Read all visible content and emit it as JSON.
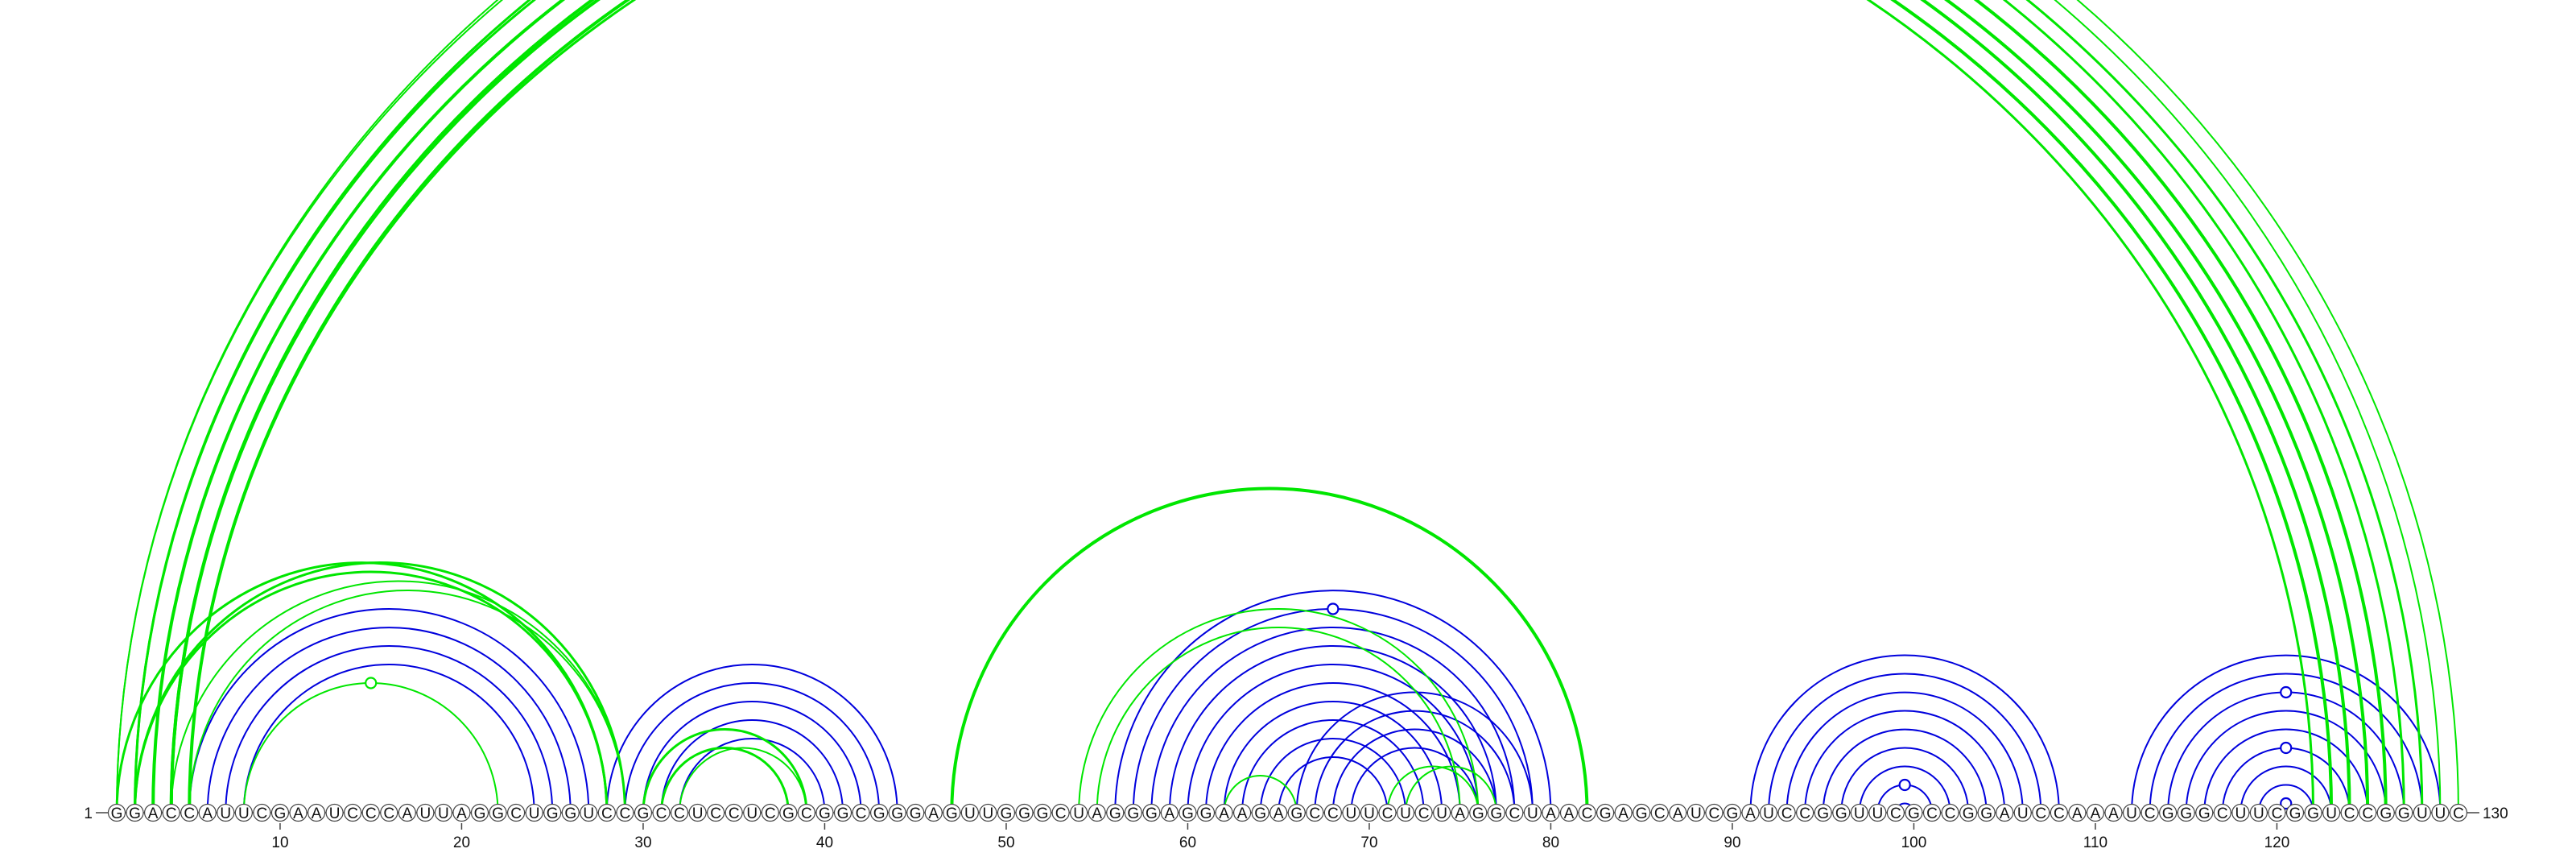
{
  "sequence": "GGACCAUUCGAAUCCCAUUAGGCUGGUCCGCCUCCUCGCGGCGGGAGUUGGGCUAGGGAGGAAGAGCCUUCUCUAGGCUAACGAGCAUCGAUCCGGUUCGCCGGAUCCAAAUCGGGCUUCGGUCCGGUUC",
  "start_label": "1",
  "end_label": "130",
  "ticks": [
    10,
    20,
    30,
    40,
    50,
    60,
    70,
    80,
    90,
    100,
    110,
    120
  ],
  "colors": {
    "reference": "#0000dd",
    "predicted": "#00e600"
  },
  "arcs": {
    "green": [
      [
        1,
        130,
        2
      ],
      [
        1,
        129,
        2
      ],
      [
        2,
        128,
        3
      ],
      [
        2,
        127,
        3
      ],
      [
        3,
        126,
        4
      ],
      [
        4,
        125,
        4
      ],
      [
        4,
        124,
        4
      ],
      [
        5,
        123,
        4
      ],
      [
        5,
        122,
        3
      ],
      [
        1,
        28,
        3
      ],
      [
        2,
        28,
        3
      ],
      [
        2,
        29,
        3
      ],
      [
        4,
        29,
        2
      ],
      [
        5,
        29,
        2
      ],
      [
        8,
        22,
        2
      ],
      [
        30,
        39,
        3
      ],
      [
        31,
        38,
        3
      ],
      [
        32,
        39,
        2
      ],
      [
        47,
        82,
        4
      ],
      [
        54,
        76,
        2
      ],
      [
        55,
        75,
        2
      ],
      [
        62,
        66,
        2
      ],
      [
        71,
        76,
        2
      ],
      [
        72,
        77,
        2
      ]
    ],
    "blue": [
      [
        5,
        27,
        2
      ],
      [
        6,
        26,
        2
      ],
      [
        7,
        25,
        2
      ],
      [
        8,
        24,
        2
      ],
      [
        28,
        44,
        2
      ],
      [
        29,
        43,
        2
      ],
      [
        30,
        42,
        2
      ],
      [
        31,
        41,
        2
      ],
      [
        32,
        40,
        2
      ],
      [
        56,
        80,
        2
      ],
      [
        57,
        79,
        2
      ],
      [
        58,
        78,
        2
      ],
      [
        59,
        77,
        2
      ],
      [
        60,
        76,
        2
      ],
      [
        61,
        75,
        2
      ],
      [
        62,
        74,
        2
      ],
      [
        63,
        73,
        2
      ],
      [
        64,
        72,
        2
      ],
      [
        65,
        71,
        2
      ],
      [
        66,
        79,
        2
      ],
      [
        67,
        78,
        2
      ],
      [
        68,
        77,
        2
      ],
      [
        69,
        76,
        2
      ],
      [
        91,
        108,
        2
      ],
      [
        92,
        107,
        2
      ],
      [
        93,
        106,
        2
      ],
      [
        94,
        105,
        2
      ],
      [
        95,
        104,
        2
      ],
      [
        96,
        103,
        2
      ],
      [
        97,
        102,
        2
      ],
      [
        98,
        101,
        2
      ],
      [
        99,
        100,
        2
      ],
      [
        112,
        129,
        2
      ],
      [
        113,
        128,
        2
      ],
      [
        114,
        127,
        2
      ],
      [
        115,
        126,
        2
      ],
      [
        116,
        125,
        2
      ],
      [
        117,
        124,
        2
      ],
      [
        118,
        123,
        2
      ],
      [
        119,
        122,
        2
      ],
      [
        120,
        121,
        2
      ]
    ]
  },
  "markers": [
    {
      "i": 1,
      "j": 130,
      "color": "green"
    },
    {
      "i": 8,
      "j": 22,
      "color": "green"
    },
    {
      "i": 57,
      "j": 79,
      "color": "blue"
    },
    {
      "i": 114,
      "j": 127,
      "color": "blue"
    },
    {
      "i": 117,
      "j": 124,
      "color": "blue"
    },
    {
      "i": 120,
      "j": 121,
      "color": "blue"
    },
    {
      "i": 98,
      "j": 101,
      "color": "blue"
    }
  ]
}
